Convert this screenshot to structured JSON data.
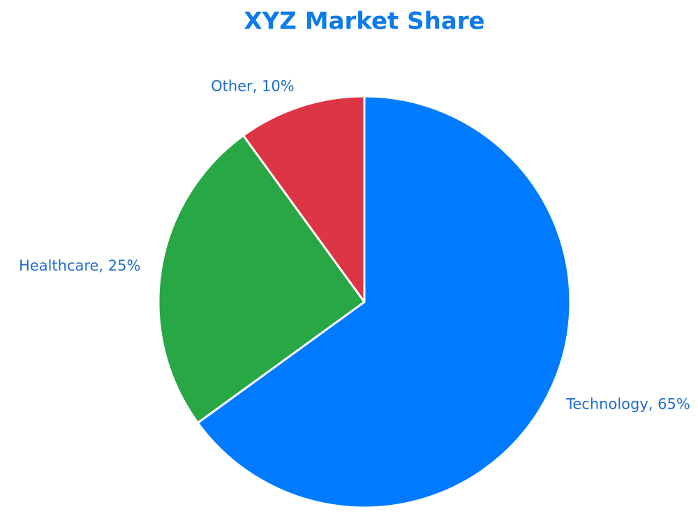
{
  "chart_data": {
    "type": "pie",
    "title": "XYZ Market Share",
    "values": [
      65,
      25,
      10
    ],
    "value_labels": [
      "Technology, 65%",
      "Healthcare, 25%",
      "Other, 10%"
    ],
    "colors": [
      "#007bff",
      "#28a745",
      "#dc3545"
    ]
  }
}
